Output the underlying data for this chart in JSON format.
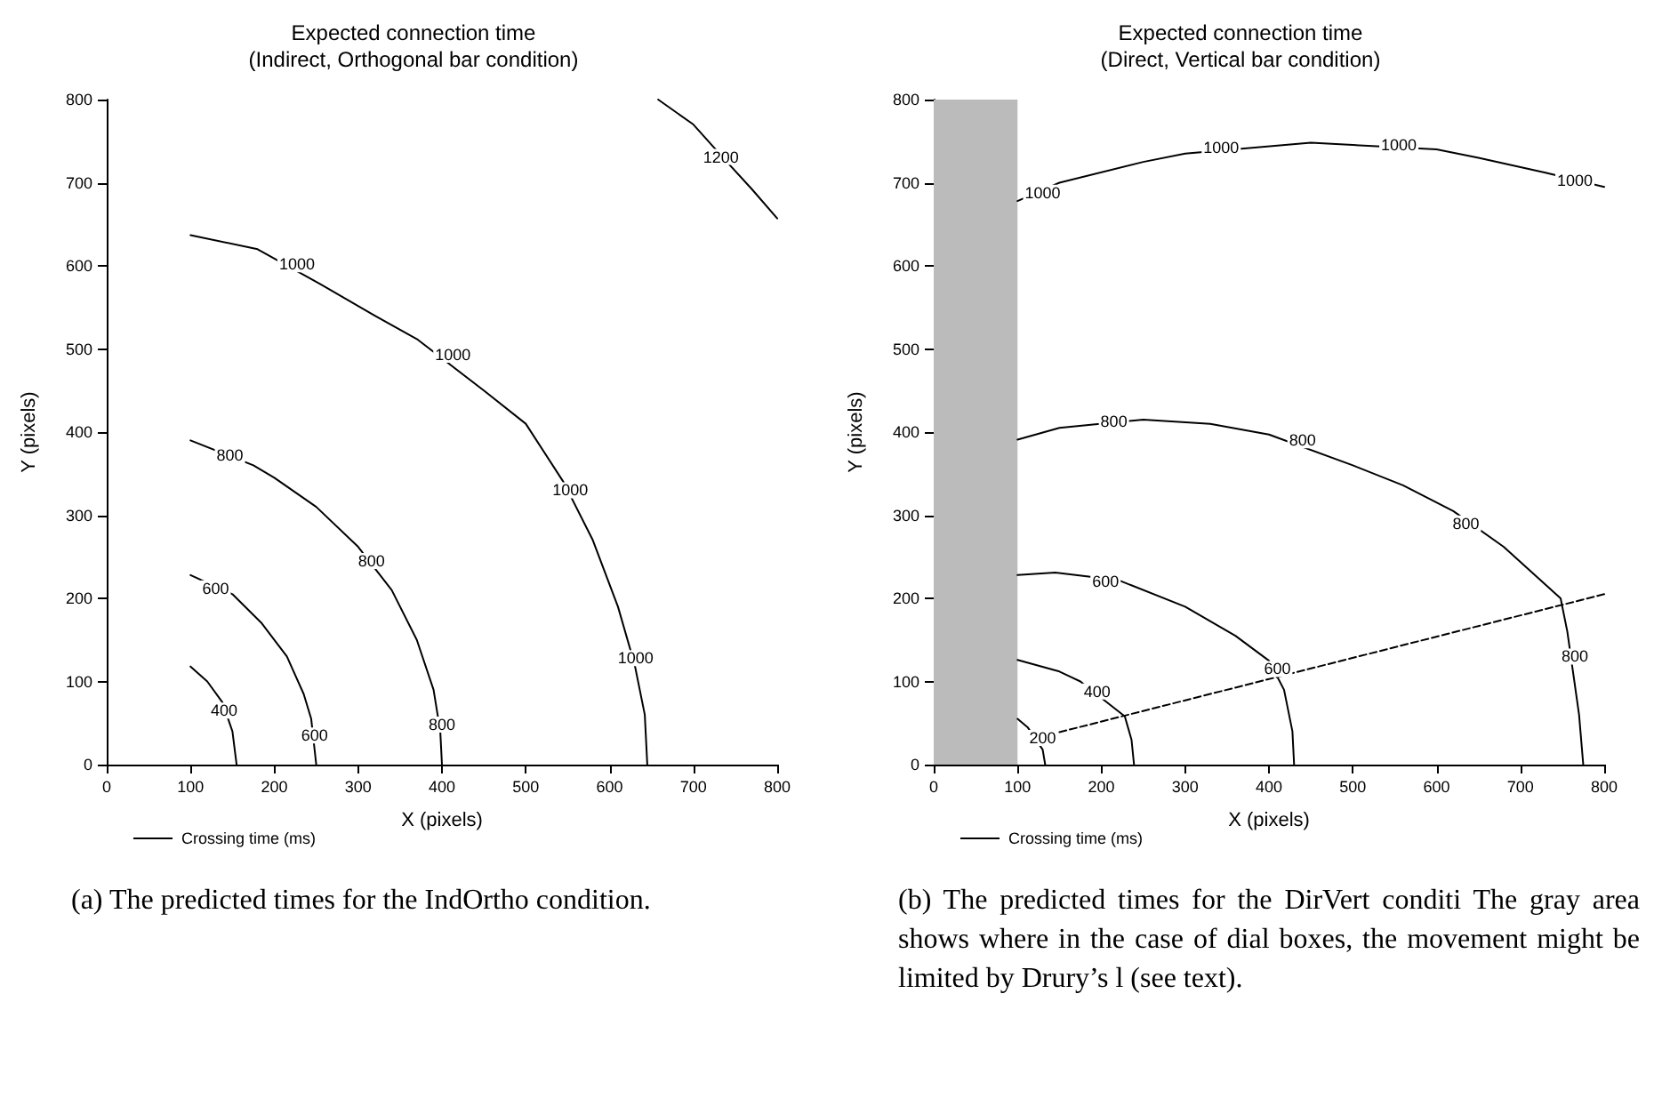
{
  "chart_data": [
    {
      "type": "line",
      "title": "Expected connection time\n(Indirect, Orthogonal bar condition)",
      "xlabel": "X (pixels)",
      "ylabel": "Y (pixels)",
      "xlim": [
        0,
        800
      ],
      "xticks": [
        0,
        100,
        200,
        300,
        400,
        500,
        600,
        700,
        800
      ],
      "ylim": [
        0,
        800
      ],
      "yticks": [
        0,
        100,
        200,
        300,
        400,
        500,
        600,
        700,
        800
      ],
      "grid": false,
      "legend": "bottom",
      "marker": "none",
      "series": [
        {
          "name": "Crossing time (ms)",
          "color": "#000000",
          "x": [
            100,
            120,
            138,
            150,
            155
          ],
          "values": [
            118,
            100,
            75,
            40,
            0
          ]
        },
        {
          "color": "#000000",
          "x": [
            100,
            150,
            185,
            215,
            235,
            244,
            250
          ],
          "values": [
            228,
            205,
            170,
            130,
            85,
            55,
            0
          ]
        },
        {
          "color": "#000000",
          "x": [
            100,
            175,
            200,
            250,
            300,
            340,
            370,
            390,
            398,
            400
          ],
          "values": [
            390,
            360,
            345,
            310,
            262,
            210,
            150,
            90,
            40,
            0
          ]
        },
        {
          "color": "#000000",
          "x": [
            100,
            180,
            255,
            320,
            370,
            450,
            500,
            545,
            580,
            610,
            630,
            642,
            645
          ],
          "values": [
            637,
            620,
            578,
            540,
            512,
            450,
            410,
            340,
            270,
            190,
            120,
            60,
            0
          ]
        },
        {
          "color": "#000000",
          "x": [
            658,
            700,
            740,
            770,
            800
          ],
          "values": [
            800,
            770,
            725,
            692,
            657
          ]
        }
      ],
      "annotations": [
        {
          "text": "400",
          "x": 140,
          "y": 65
        },
        {
          "text": "600",
          "x": 130,
          "y": 212
        },
        {
          "text": "600",
          "x": 248,
          "y": 35
        },
        {
          "text": "800",
          "x": 147,
          "y": 372
        },
        {
          "text": "800",
          "x": 316,
          "y": 245
        },
        {
          "text": "800",
          "x": 400,
          "y": 48
        },
        {
          "text": "1000",
          "x": 227,
          "y": 602
        },
        {
          "text": "1000",
          "x": 413,
          "y": 493
        },
        {
          "text": "1000",
          "x": 553,
          "y": 330
        },
        {
          "text": "1000",
          "x": 631,
          "y": 128
        },
        {
          "text": "1200",
          "x": 733,
          "y": 731
        },
        "(a) The predicted times for the IndOrtho condition."
      ]
    },
    {
      "type": "line",
      "title": "Expected connection time\n(Direct, Vertical bar condition)",
      "xlabel": "X (pixels)",
      "ylabel": "Y (pixels)",
      "xlim": [
        0,
        800
      ],
      "xticks": [
        0,
        100,
        200,
        300,
        400,
        500,
        600,
        700,
        800
      ],
      "ylim": [
        0,
        800
      ],
      "yticks": [
        0,
        100,
        200,
        300,
        400,
        500,
        600,
        700,
        800
      ],
      "grid": false,
      "legend": "bottom",
      "marker": "none",
      "series": [
        {
          "name": "Crossing time (ms)",
          "color": "#000000",
          "x": [
            100,
            150,
            250,
            300,
            450,
            600,
            650,
            730,
            800
          ],
          "values": [
            678,
            700,
            725,
            735,
            748,
            740,
            730,
            712,
            695
          ]
        },
        {
          "color": "#000000",
          "x": [
            100,
            150,
            250,
            330,
            400,
            500,
            560,
            620,
            680,
            748,
            756,
            770,
            775
          ],
          "values": [
            391,
            405,
            415,
            410,
            397,
            360,
            336,
            305,
            262,
            200,
            160,
            60,
            0
          ]
        },
        {
          "color": "#000000",
          "x": [
            100,
            145,
            220,
            300,
            360,
            400,
            418,
            428,
            430
          ],
          "values": [
            228,
            231,
            222,
            190,
            155,
            125,
            90,
            40,
            0
          ]
        },
        {
          "color": "#000000",
          "x": [
            100,
            150,
            175,
            228,
            236,
            239
          ],
          "values": [
            126,
            112,
            100,
            58,
            30,
            0
          ]
        },
        {
          "color": "#000000",
          "x": [
            100,
            112,
            130,
            133
          ],
          "values": [
            55,
            45,
            18,
            0
          ]
        },
        {
          "color": "#000000",
          "line_style": "dashed",
          "x": [
            150,
            800
          ],
          "values": [
            39,
            205
          ]
        }
      ],
      "bands": [
        {
          "axis": "x",
          "from": 0,
          "to": 100,
          "color": "#bbbbbb"
        }
      ],
      "annotations": [
        {
          "text": "1000",
          "x": 130,
          "y": 688
        },
        {
          "text": "1000",
          "x": 343,
          "y": 742
        },
        {
          "text": "1000",
          "x": 555,
          "y": 745
        },
        {
          "text": "1000",
          "x": 765,
          "y": 703
        },
        {
          "text": "800",
          "x": 215,
          "y": 413
        },
        {
          "text": "800",
          "x": 440,
          "y": 390
        },
        {
          "text": "800",
          "x": 635,
          "y": 290
        },
        {
          "text": "800",
          "x": 765,
          "y": 130
        },
        {
          "text": "600",
          "x": 205,
          "y": 220
        },
        {
          "text": "600",
          "x": 410,
          "y": 115
        },
        {
          "text": "400",
          "x": 195,
          "y": 88
        },
        {
          "text": "200",
          "x": 130,
          "y": 32
        },
        "(b) The predicted times for the DirVert conditi The gray area shows where in the case of dial boxes, the movement might be limited by Drury’s l (see text)."
      ]
    }
  ]
}
